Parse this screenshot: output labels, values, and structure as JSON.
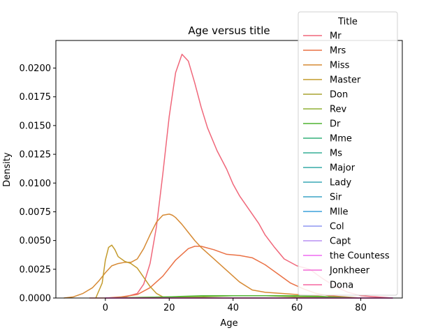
{
  "chart_data": {
    "type": "line",
    "title": "Age versus title",
    "xlabel": "Age",
    "ylabel": "Density",
    "xlim": [
      -15.5,
      93
    ],
    "ylim": [
      0,
      0.0224
    ],
    "xticks": [
      "0",
      "20",
      "40",
      "60",
      "80"
    ],
    "xtick_values": [
      0,
      20,
      40,
      60,
      80
    ],
    "yticks": [
      "0.0000",
      "0.0025",
      "0.0050",
      "0.0075",
      "0.0100",
      "0.0125",
      "0.0150",
      "0.0175",
      "0.0200"
    ],
    "ytick_values": [
      0,
      0.0025,
      0.005,
      0.0075,
      0.01,
      0.0125,
      0.015,
      0.0175,
      0.02
    ],
    "grid": false,
    "legend": {
      "title": "Title",
      "placement": "top-right"
    },
    "series": [
      {
        "name": "Mr",
        "color": "#f0677a",
        "x": [
          -5,
          0,
          5,
          10,
          12,
          14,
          16,
          18,
          20,
          22,
          24,
          26,
          28,
          30,
          32,
          35,
          38,
          40,
          42,
          45,
          48,
          50,
          53,
          56,
          60,
          64,
          68,
          72,
          76,
          80,
          85,
          90
        ],
        "y": [
          0,
          0,
          0,
          0.0004,
          0.0012,
          0.003,
          0.0062,
          0.0108,
          0.0158,
          0.0196,
          0.0212,
          0.0206,
          0.0187,
          0.0166,
          0.0148,
          0.0128,
          0.0112,
          0.0099,
          0.0089,
          0.0077,
          0.0065,
          0.0055,
          0.0044,
          0.0034,
          0.0028,
          0.0025,
          0.0017,
          0.001,
          0.0005,
          0.0002,
          0.0001,
          0
        ]
      },
      {
        "name": "Mrs",
        "color": "#ea7145",
        "x": [
          0,
          5,
          10,
          14,
          18,
          22,
          26,
          28,
          30,
          34,
          38,
          42,
          46,
          50,
          54,
          58,
          62,
          66,
          70,
          75,
          80
        ],
        "y": [
          0,
          0.0001,
          0.0003,
          0.0009,
          0.0019,
          0.0033,
          0.0043,
          0.0045,
          0.0045,
          0.0042,
          0.0038,
          0.0037,
          0.0035,
          0.0029,
          0.0021,
          0.0013,
          0.0008,
          0.0004,
          0.0002,
          0.0001,
          0
        ]
      },
      {
        "name": "Miss",
        "color": "#d68a34",
        "x": [
          -13,
          -10,
          -7,
          -4,
          -2,
          0,
          2,
          4,
          6,
          8,
          10,
          12,
          14,
          16,
          18,
          20,
          21,
          22,
          24,
          26,
          28,
          30,
          34,
          38,
          42,
          46,
          50,
          55,
          60,
          65,
          70,
          75
        ],
        "y": [
          0,
          0.0001,
          0.0004,
          0.0009,
          0.0015,
          0.0022,
          0.0028,
          0.003,
          0.0031,
          0.0031,
          0.0034,
          0.0043,
          0.0055,
          0.0066,
          0.0072,
          0.0073,
          0.0072,
          0.007,
          0.0064,
          0.0057,
          0.005,
          0.0044,
          0.0034,
          0.0024,
          0.0014,
          0.0007,
          0.0005,
          0.0004,
          0.0003,
          0.0002,
          0.0001,
          0
        ]
      },
      {
        "name": "Master",
        "color": "#c39b2c",
        "x": [
          -3,
          -1,
          0,
          1,
          2,
          3,
          4,
          6,
          8,
          10,
          12,
          14,
          16,
          18,
          20
        ],
        "y": [
          0,
          0.0013,
          0.0033,
          0.0044,
          0.0046,
          0.0042,
          0.0036,
          0.0032,
          0.003,
          0.0026,
          0.0018,
          0.001,
          0.0004,
          0.0001,
          0
        ]
      },
      {
        "name": "Don",
        "color": "#a9a331",
        "x": [
          0,
          90
        ],
        "y": [
          0,
          0
        ]
      },
      {
        "name": "Rev",
        "color": "#8fb035",
        "x": [
          0,
          20,
          30,
          40,
          50,
          60,
          70,
          80
        ],
        "y": [
          0,
          0.0001,
          0.0001,
          0.0002,
          0.0002,
          0.0001,
          0.0001,
          0
        ]
      },
      {
        "name": "Dr",
        "color": "#4fb431",
        "x": [
          0,
          20,
          30,
          40,
          50,
          60,
          70,
          80
        ],
        "y": [
          0,
          0.0001,
          0.0002,
          0.0002,
          0.0002,
          0.0002,
          0.0001,
          0
        ]
      },
      {
        "name": "Mme",
        "color": "#33b07a",
        "x": [
          0,
          90
        ],
        "y": [
          0,
          0
        ]
      },
      {
        "name": "Ms",
        "color": "#35ad96",
        "x": [
          0,
          90
        ],
        "y": [
          0,
          0
        ]
      },
      {
        "name": "Major",
        "color": "#36aaa7",
        "x": [
          0,
          90
        ],
        "y": [
          0,
          0
        ]
      },
      {
        "name": "Lady",
        "color": "#38a8b6",
        "x": [
          0,
          90
        ],
        "y": [
          0,
          0
        ]
      },
      {
        "name": "Sir",
        "color": "#3aa4c6",
        "x": [
          0,
          90
        ],
        "y": [
          0,
          0
        ]
      },
      {
        "name": "Mlle",
        "color": "#3ca0dc",
        "x": [
          0,
          90
        ],
        "y": [
          0,
          0
        ]
      },
      {
        "name": "Col",
        "color": "#8e95f2",
        "x": [
          0,
          90
        ],
        "y": [
          0,
          0
        ]
      },
      {
        "name": "Capt",
        "color": "#b88ff4",
        "x": [
          0,
          90
        ],
        "y": [
          0,
          0
        ]
      },
      {
        "name": "the Countess",
        "color": "#ef6cf2",
        "x": [
          0,
          90
        ],
        "y": [
          0,
          0
        ]
      },
      {
        "name": "Jonkheer",
        "color": "#f469d6",
        "x": [
          0,
          90
        ],
        "y": [
          0,
          0
        ]
      },
      {
        "name": "Dona",
        "color": "#f5669f",
        "x": [
          0,
          90
        ],
        "y": [
          0,
          0
        ]
      }
    ]
  }
}
